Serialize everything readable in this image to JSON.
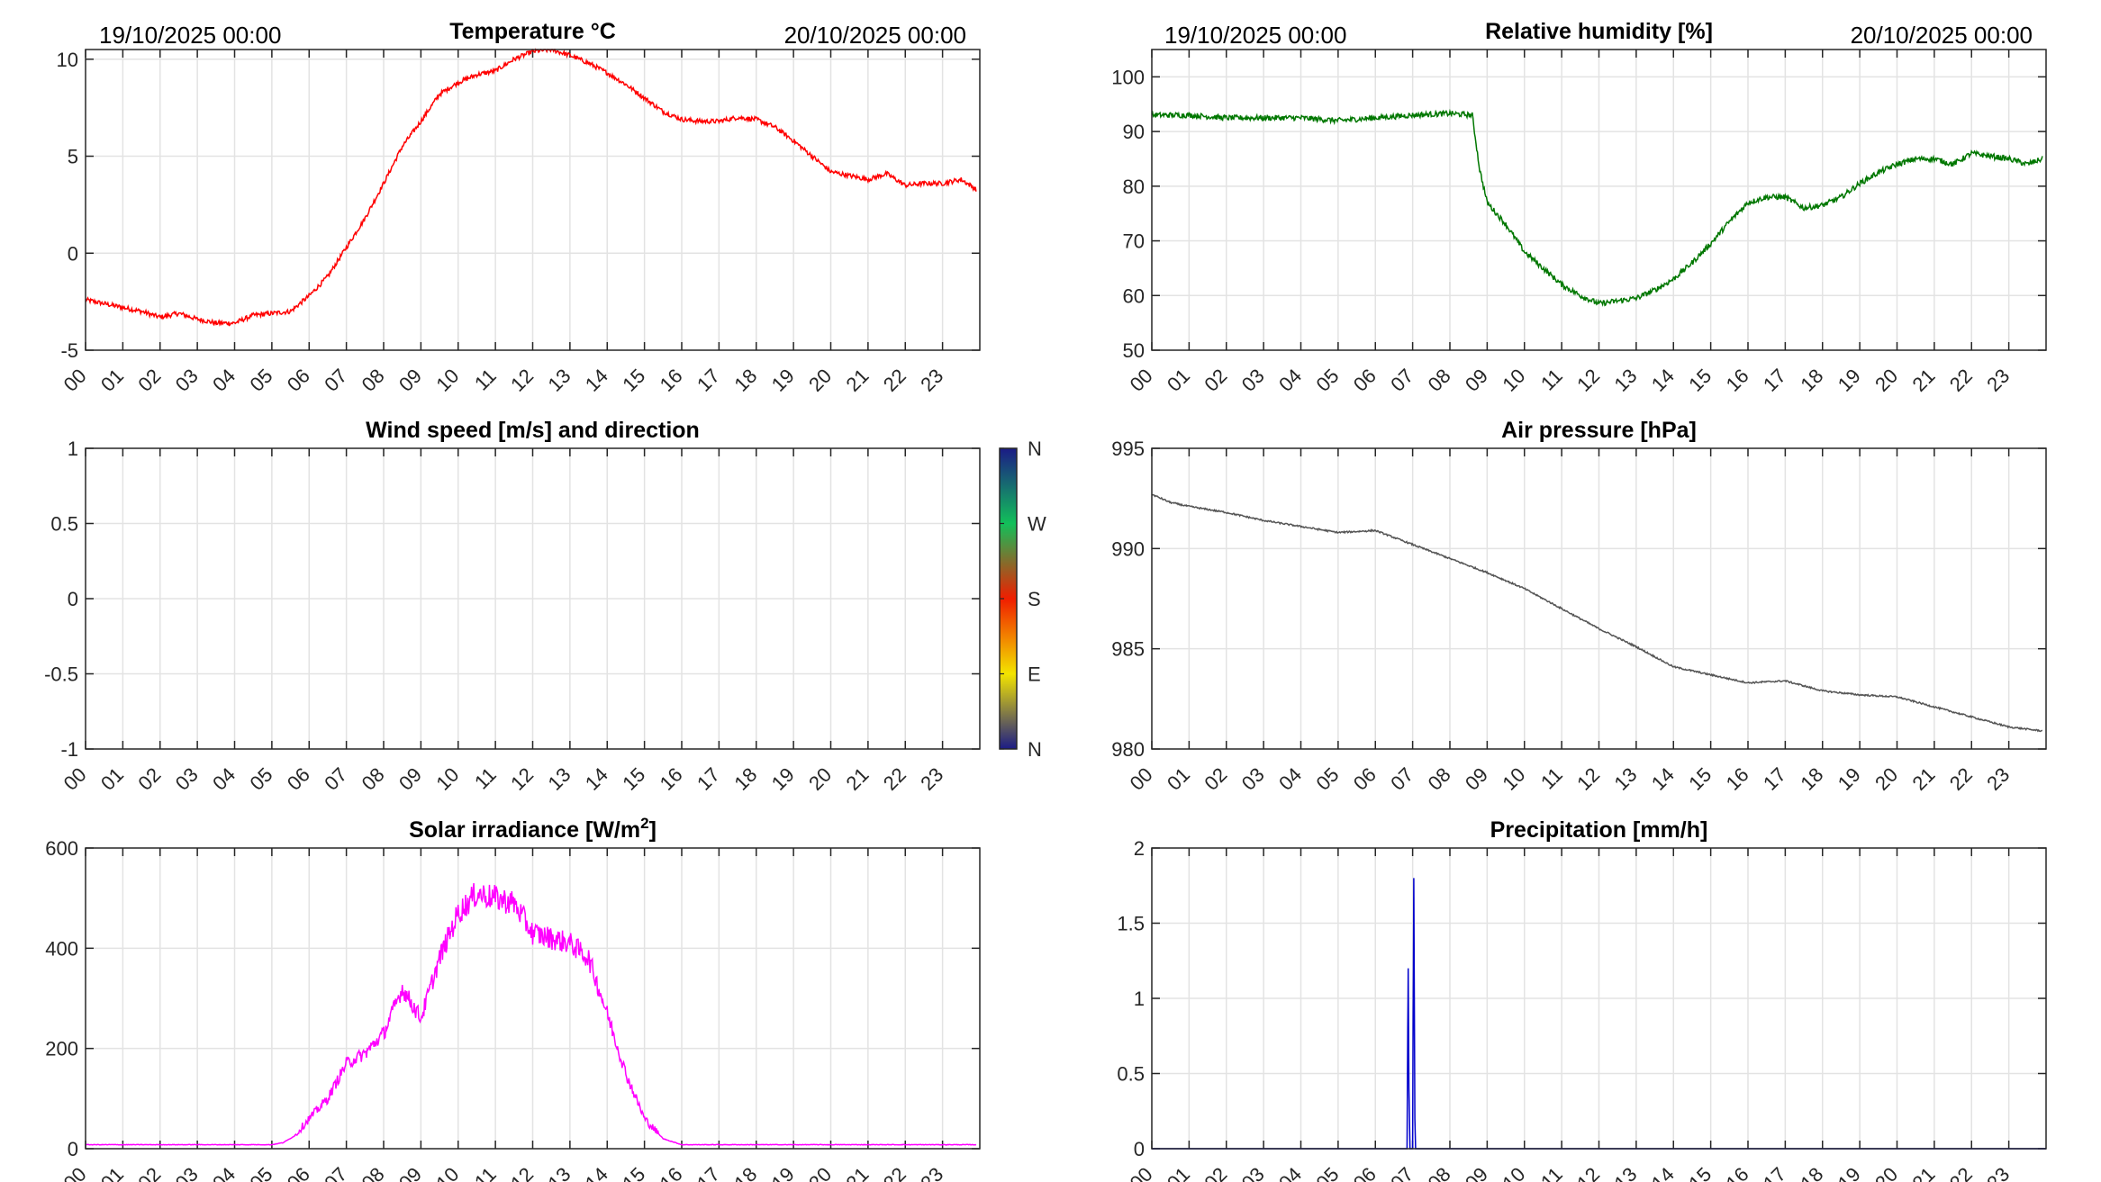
{
  "date_labels": {
    "start": "19/10/2025 00:00",
    "end": "20/10/2025 00:00"
  },
  "x_tick_labels": [
    "00",
    "01",
    "02",
    "03",
    "04",
    "05",
    "06",
    "07",
    "08",
    "09",
    "10",
    "11",
    "12",
    "13",
    "14",
    "15",
    "16",
    "17",
    "18",
    "19",
    "20",
    "21",
    "22",
    "23"
  ],
  "colorbar": {
    "labels": [
      "N",
      "W",
      "S",
      "E",
      "N"
    ],
    "colors": [
      "#1b1b86",
      "#12c05a",
      "#f01e00",
      "#f3e400",
      "#1b1b86"
    ]
  },
  "chart_data": [
    {
      "id": "temperature",
      "type": "line",
      "title": "Temperature °C",
      "color": "#ff0000",
      "ylim": [
        -5,
        10.5
      ],
      "yticks": [
        -5,
        0,
        5,
        10
      ],
      "xlim": [
        0,
        24
      ],
      "grid": true,
      "x": [
        0,
        0.5,
        1,
        1.5,
        2,
        2.5,
        3,
        3.5,
        4,
        4.5,
        5,
        5.5,
        6,
        6.5,
        7,
        7.5,
        8,
        8.5,
        9,
        9.5,
        10,
        10.5,
        11,
        11.5,
        12,
        12.5,
        13,
        13.5,
        14,
        14.5,
        15,
        15.5,
        16,
        16.5,
        17,
        17.5,
        18,
        18.5,
        19,
        19.5,
        20,
        20.5,
        21,
        21.5,
        22,
        22.5,
        23,
        23.5,
        23.9
      ],
      "y": [
        -2.4,
        -2.6,
        -2.8,
        -3.0,
        -3.3,
        -3.1,
        -3.4,
        -3.6,
        -3.6,
        -3.2,
        -3.1,
        -3.0,
        -2.2,
        -1.2,
        0.3,
        1.8,
        3.6,
        5.5,
        6.8,
        8.2,
        8.8,
        9.2,
        9.4,
        10.0,
        10.4,
        10.5,
        10.2,
        9.8,
        9.3,
        8.7,
        8.0,
        7.3,
        6.9,
        6.8,
        6.8,
        7.0,
        6.9,
        6.5,
        5.8,
        5.0,
        4.2,
        4.0,
        3.8,
        4.1,
        3.5,
        3.6,
        3.6,
        3.8,
        3.3
      ],
      "noise": 0.12
    },
    {
      "id": "humidity",
      "type": "line",
      "title": "Relative humidity [%]",
      "color": "#007700",
      "ylim": [
        50,
        105
      ],
      "yticks": [
        50,
        60,
        70,
        80,
        90,
        100
      ],
      "xlim": [
        0,
        24
      ],
      "grid": true,
      "x": [
        0,
        1,
        2,
        3,
        4,
        5,
        6,
        7,
        8,
        8.6,
        8.8,
        9,
        9.5,
        10,
        10.5,
        11,
        11.5,
        12,
        12.5,
        13,
        13.5,
        14,
        14.5,
        15,
        15.5,
        16,
        16.5,
        17,
        17.5,
        18,
        18.5,
        19,
        19.5,
        20,
        20.5,
        21,
        21.5,
        22,
        22.5,
        23,
        23.5,
        23.9
      ],
      "y": [
        93,
        93,
        92.5,
        92.5,
        92.5,
        92,
        92.5,
        93,
        93.3,
        93,
        83,
        77,
        73,
        68,
        65,
        62,
        60,
        58.5,
        59,
        59.5,
        61,
        63,
        66,
        69.5,
        73.5,
        77,
        78,
        78,
        76,
        76.5,
        78,
        80.5,
        82.5,
        84,
        85,
        85,
        84,
        86,
        85.5,
        85,
        84,
        85
      ],
      "noise": 0.5
    },
    {
      "id": "wind",
      "type": "scatter",
      "title": "Wind speed [m/s] and direction",
      "color": "#000000",
      "ylim": [
        -1,
        1
      ],
      "yticks": [
        -1,
        -0.5,
        0,
        0.5,
        1
      ],
      "xlim": [
        0,
        24
      ],
      "grid": true,
      "x": [],
      "y": []
    },
    {
      "id": "pressure",
      "type": "line",
      "title": "Air pressure [hPa]",
      "color": "#555555",
      "ylim": [
        980,
        995
      ],
      "yticks": [
        980,
        985,
        990,
        995
      ],
      "xlim": [
        0,
        24
      ],
      "grid": true,
      "x": [
        0,
        0.5,
        1,
        2,
        3,
        4,
        5,
        6,
        7,
        8,
        9,
        10,
        11,
        12,
        13,
        14,
        15,
        16,
        17,
        18,
        19,
        20,
        21,
        22,
        23,
        23.9
      ],
      "y": [
        992.7,
        992.3,
        992.1,
        991.8,
        991.4,
        991.1,
        990.8,
        990.9,
        990.2,
        989.5,
        988.8,
        988.0,
        987.0,
        986.0,
        985.1,
        984.1,
        983.7,
        983.3,
        983.4,
        982.9,
        982.7,
        982.6,
        982.1,
        981.6,
        981.1,
        980.9
      ],
      "noise": 0.04
    },
    {
      "id": "solar",
      "type": "line",
      "title": "Solar irradiance [W/m²]",
      "title_main": "Solar irradiance [W/m",
      "title_sup": "2",
      "title_end": "]",
      "color": "#ff00ff",
      "ylim": [
        0,
        600
      ],
      "yticks": [
        0,
        200,
        400,
        600
      ],
      "xlim": [
        0,
        24
      ],
      "grid": true,
      "x": [
        0,
        1,
        2,
        3,
        4,
        5,
        5.3,
        5.6,
        6,
        6.5,
        7,
        7.5,
        8,
        8.5,
        9,
        9.5,
        10,
        10.5,
        11,
        11.5,
        12,
        12.5,
        13,
        13.5,
        14,
        14.5,
        15,
        15.5,
        16,
        17,
        18,
        19,
        20,
        21,
        22,
        23,
        23.9
      ],
      "y": [
        8,
        8,
        8,
        8,
        8,
        8,
        12,
        25,
        60,
        100,
        170,
        190,
        230,
        320,
        260,
        380,
        470,
        510,
        500,
        490,
        430,
        420,
        410,
        380,
        270,
        150,
        60,
        20,
        8,
        8,
        8,
        8,
        8,
        8,
        8,
        8,
        8
      ],
      "noise": 12
    },
    {
      "id": "precipitation",
      "type": "line",
      "title": "Precipitation [mm/h]",
      "color": "#0000cc",
      "ylim": [
        0,
        2
      ],
      "yticks": [
        0,
        0.5,
        1,
        1.5,
        2
      ],
      "xlim": [
        0,
        24
      ],
      "grid": true,
      "x": [
        0,
        6.85,
        6.88,
        6.9,
        6.93,
        6.96,
        7.0,
        7.03,
        7.06,
        7.08,
        7.12,
        7.15,
        24
      ],
      "y": [
        0,
        0,
        1.2,
        0.4,
        0,
        0,
        0,
        1.8,
        0.2,
        0,
        0,
        0,
        0
      ],
      "noise": 0
    }
  ]
}
